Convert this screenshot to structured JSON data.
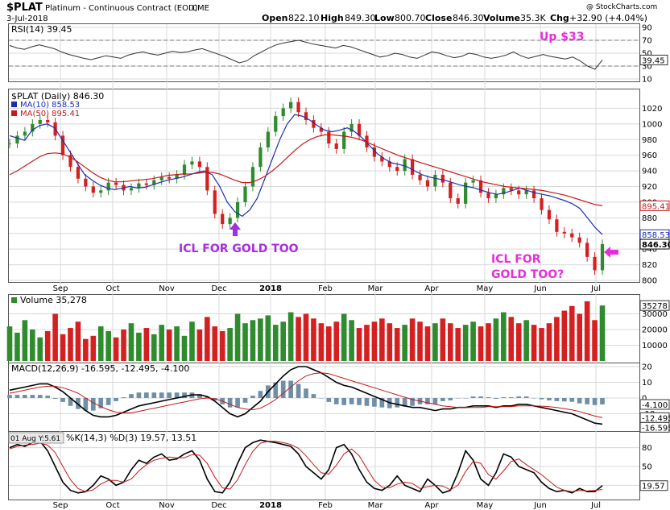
{
  "header": {
    "symbol": "$PLAT",
    "name": "Platinum - Continuous Contract (EOD)",
    "exchange": "CME",
    "date": "3-Jul-2018",
    "watermark": "@ StockCharts.com",
    "open_label": "Open",
    "open": "822.10",
    "high_label": "High",
    "high": "849.30",
    "low_label": "Low",
    "low": "800.70",
    "close_label": "Close",
    "close": "846.30",
    "volume_label": "Volume",
    "volume": "35.3K",
    "chg_label": "Chg",
    "chg": "+32.90 (+4.04%)"
  },
  "colors": {
    "up": "#2e8b2e",
    "down": "#d42020",
    "ma10": "#1c2fa8",
    "ma50": "#c41a1a",
    "annotation_pink": "#e62ed8",
    "annotation_purple": "#a52fdc",
    "grid": "#d8d8d8"
  },
  "annotations": {
    "up_text": "Up $33",
    "icl_gold_too": "ICL FOR GOLD TOO",
    "icl_for": "ICL FOR",
    "gold_too_q": "GOLD TOO?"
  },
  "chart_data": [
    {
      "type": "line",
      "panel": "rsi",
      "title": "RSI(14) 39.45",
      "ylim": [
        10,
        90
      ],
      "yticks": [
        10,
        30,
        50,
        70,
        90
      ],
      "last_value_label": "39.45",
      "values": [
        62,
        58,
        56,
        60,
        63,
        60,
        57,
        52,
        48,
        45,
        42,
        40,
        43,
        46,
        44,
        42,
        47,
        50,
        52,
        49,
        47,
        50,
        53,
        51,
        52,
        55,
        57,
        53,
        49,
        45,
        40,
        35,
        38,
        46,
        52,
        58,
        63,
        66,
        68,
        70,
        67,
        64,
        62,
        60,
        58,
        62,
        60,
        56,
        52,
        48,
        44,
        46,
        50,
        48,
        44,
        42,
        47,
        52,
        50,
        46,
        43,
        45,
        50,
        48,
        44,
        42,
        44,
        47,
        52,
        46,
        42,
        45,
        48,
        45,
        43,
        41,
        44,
        38,
        30,
        25,
        39.45
      ]
    },
    {
      "type": "line",
      "panel": "price",
      "title": "$PLAT (Daily) 846.30",
      "series": [
        {
          "name": "MA(10) 858.53",
          "label": "858.53",
          "values": [
            985,
            982,
            979,
            992,
            998,
            1000,
            995,
            980,
            965,
            950,
            935,
            928,
            922,
            918,
            916,
            918,
            920,
            918,
            919,
            922,
            925,
            928,
            930,
            932,
            935,
            938,
            940,
            935,
            920,
            900,
            888,
            882,
            890,
            905,
            930,
            955,
            980,
            1000,
            1012,
            1010,
            1005,
            998,
            992,
            990,
            992,
            995,
            990,
            982,
            972,
            962,
            955,
            950,
            948,
            945,
            940,
            935,
            932,
            930,
            928,
            925,
            922,
            920,
            918,
            915,
            912,
            910,
            912,
            915,
            918,
            915,
            912,
            910,
            908,
            905,
            902,
            898,
            892,
            880,
            868,
            858.53
          ]
        },
        {
          "name": "MA(50) 895.41",
          "label": "895.41",
          "values": [
            935,
            940,
            946,
            952,
            958,
            962,
            963,
            962,
            958,
            952,
            945,
            938,
            932,
            928,
            926,
            926,
            927,
            928,
            929,
            930,
            932,
            934,
            935,
            936,
            936,
            937,
            938,
            938,
            936,
            932,
            928,
            925,
            925,
            928,
            933,
            940,
            948,
            957,
            966,
            974,
            980,
            984,
            986,
            986,
            985,
            984,
            982,
            979,
            975,
            971,
            967,
            963,
            959,
            956,
            953,
            950,
            947,
            944,
            941,
            938,
            935,
            932,
            929,
            926,
            924,
            922,
            920,
            919,
            918,
            917,
            916,
            915,
            913,
            911,
            909,
            906,
            903,
            900,
            897,
            895.41
          ]
        }
      ],
      "ohlc_close": [
        975,
        985,
        990,
        1000,
        1005,
        1002,
        985,
        960,
        945,
        930,
        920,
        912,
        915,
        925,
        922,
        915,
        918,
        924,
        922,
        928,
        932,
        930,
        935,
        948,
        952,
        945,
        915,
        885,
        872,
        880,
        900,
        920,
        945,
        970,
        990,
        1010,
        1020,
        1028,
        1015,
        1005,
        995,
        990,
        975,
        968,
        990,
        1000,
        985,
        970,
        958,
        952,
        945,
        940,
        955,
        935,
        928,
        920,
        935,
        925,
        905,
        898,
        925,
        928,
        912,
        905,
        910,
        918,
        915,
        910,
        915,
        905,
        890,
        878,
        862,
        860,
        855,
        848,
        830,
        813,
        846.3
      ],
      "ylim": [
        800,
        1040
      ],
      "yticks": [
        800,
        820,
        840,
        860,
        880,
        900,
        920,
        940,
        960,
        980,
        1000,
        1020
      ],
      "last_value_label": "846.30",
      "xticks": [
        "Sep",
        "Oct",
        "Nov",
        "Dec",
        "2018",
        "Feb",
        "Mar",
        "Apr",
        "May",
        "Jun",
        "Jul"
      ]
    },
    {
      "type": "bar",
      "panel": "volume",
      "title": "Volume 35,278",
      "last_value_label": "35278",
      "ylim": [
        0,
        40000
      ],
      "yticks": [
        10000,
        20000,
        30000
      ],
      "values": [
        22000,
        18000,
        26000,
        20000,
        15000,
        19000,
        30000,
        17000,
        21000,
        25000,
        14000,
        16000,
        22000,
        19000,
        15000,
        20000,
        24000,
        18000,
        21000,
        17000,
        23000,
        20000,
        22000,
        16000,
        25000,
        20000,
        28000,
        22000,
        19000,
        21000,
        30000,
        24000,
        26000,
        27000,
        29000,
        23000,
        25000,
        31000,
        28000,
        30000,
        27000,
        24000,
        22000,
        25000,
        30000,
        26000,
        21000,
        23000,
        25000,
        27000,
        24000,
        21000,
        23000,
        27000,
        25000,
        22000,
        24000,
        27000,
        24000,
        21000,
        23000,
        25000,
        22000,
        24000,
        27000,
        31000,
        28000,
        24000,
        26000,
        23000,
        21000,
        24000,
        28000,
        32000,
        35000,
        30000,
        38000,
        26000,
        35278
      ]
    },
    {
      "type": "line",
      "panel": "macd",
      "title": "MACD(12,26,9) -16.595, -12.495, -4.100",
      "ylim": [
        -20,
        20
      ],
      "yticks": [
        -10,
        0,
        10,
        20
      ],
      "series": [
        {
          "name": "MACD",
          "label": "-16.595",
          "values": [
            5,
            6,
            7,
            8,
            9,
            9,
            7,
            4,
            0,
            -4,
            -8,
            -11,
            -12,
            -12,
            -11,
            -9,
            -7,
            -5,
            -4,
            -3,
            -2,
            -1,
            0,
            1,
            2,
            2,
            1,
            -2,
            -6,
            -10,
            -12,
            -10,
            -6,
            -2,
            4,
            9,
            14,
            18,
            20,
            20,
            18,
            16,
            13,
            10,
            8,
            7,
            5,
            3,
            1,
            -1,
            -3,
            -4,
            -5,
            -6,
            -6,
            -7,
            -8,
            -7,
            -7,
            -6,
            -6,
            -5,
            -5,
            -5,
            -6,
            -5,
            -5,
            -4,
            -4,
            -5,
            -6,
            -7,
            -8,
            -9,
            -10,
            -12,
            -14,
            -16,
            -16.595
          ]
        },
        {
          "name": "Signal",
          "label": "-12.495",
          "values": [
            3,
            4,
            5,
            6,
            7,
            7.5,
            7.5,
            6.5,
            5,
            3,
            0,
            -3,
            -5.5,
            -7.5,
            -9,
            -9.5,
            -9.5,
            -8.5,
            -7.5,
            -6.5,
            -5.5,
            -4.5,
            -3.5,
            -2.5,
            -1.5,
            -0.5,
            0,
            -0.5,
            -2,
            -4,
            -6,
            -7,
            -7.5,
            -6.5,
            -4,
            -1,
            3,
            7,
            11,
            14,
            15.5,
            16,
            15.5,
            14,
            12.5,
            11,
            9.5,
            8,
            6.5,
            5,
            3.5,
            2,
            0.5,
            -1,
            -2,
            -3,
            -4,
            -5,
            -5.5,
            -6,
            -6,
            -6,
            -6,
            -5.5,
            -5.5,
            -5.5,
            -5.5,
            -5,
            -5,
            -5,
            -5.2,
            -5.5,
            -6,
            -6.8,
            -7.6,
            -8.6,
            -10,
            -11.5,
            -12.495
          ]
        }
      ],
      "histogram_label": "-4.100",
      "histogram": [
        2,
        2,
        2,
        2,
        2,
        1.5,
        -0.5,
        -2.5,
        -5,
        -7,
        -8,
        -8,
        -6.5,
        -4.5,
        -2,
        0.5,
        2.5,
        3.5,
        3.5,
        3.5,
        3.5,
        3.5,
        3.5,
        3.5,
        3.5,
        2.5,
        1,
        -1.5,
        -4,
        -6,
        -6,
        -3,
        1.5,
        4.5,
        8,
        10,
        11,
        11,
        9,
        6,
        2.5,
        0,
        -2.5,
        -4,
        -4.5,
        -4,
        -4.5,
        -5,
        -5.5,
        -6,
        -6.5,
        -6,
        -5.5,
        -5,
        -4,
        -4,
        -4,
        -2,
        -1.5,
        0,
        0,
        1,
        1,
        0.5,
        -0.5,
        0.5,
        0.5,
        1,
        1,
        0,
        -0.8,
        -1.5,
        -2,
        -2.2,
        -2.4,
        -3.4,
        -4,
        -4.5,
        -4.1
      ]
    },
    {
      "type": "line",
      "panel": "stochastic",
      "title": "%K(14,3) %D(3) 19.57, 13.51",
      "date_tag": "01 Aug Y:5.61",
      "ylim": [
        0,
        100
      ],
      "yticks": [
        20,
        50,
        80
      ],
      "series": [
        {
          "name": "%K(14,3)",
          "label": "19.57",
          "values": [
            80,
            85,
            82,
            88,
            90,
            75,
            50,
            25,
            12,
            8,
            10,
            20,
            35,
            30,
            20,
            25,
            45,
            60,
            55,
            65,
            70,
            60,
            62,
            70,
            75,
            60,
            30,
            10,
            8,
            25,
            55,
            80,
            88,
            92,
            90,
            88,
            85,
            82,
            70,
            50,
            40,
            30,
            45,
            80,
            85,
            70,
            45,
            25,
            15,
            12,
            20,
            35,
            20,
            15,
            10,
            30,
            20,
            8,
            12,
            40,
            75,
            60,
            30,
            20,
            40,
            70,
            65,
            50,
            45,
            40,
            25,
            15,
            10,
            12,
            8,
            15,
            10,
            10,
            19.57
          ]
        },
        {
          "name": "%D(3)",
          "label": "13.51",
          "values": [
            78,
            82,
            84,
            85,
            87,
            84,
            72,
            50,
            29,
            15,
            10,
            13,
            22,
            28,
            28,
            25,
            30,
            43,
            53,
            60,
            63,
            65,
            64,
            64,
            69,
            68,
            55,
            33,
            16,
            14,
            29,
            53,
            74,
            87,
            90,
            90,
            88,
            85,
            79,
            67,
            53,
            40,
            38,
            52,
            70,
            78,
            67,
            47,
            28,
            17,
            16,
            22,
            25,
            23,
            15,
            18,
            20,
            19,
            13,
            20,
            42,
            58,
            55,
            37,
            30,
            43,
            58,
            62,
            53,
            45,
            37,
            27,
            17,
            12,
            10,
            12,
            11,
            12,
            13.51
          ]
        }
      ],
      "xticks": [
        "Sep",
        "Oct",
        "Nov",
        "Dec",
        "2018",
        "Feb",
        "Mar",
        "Apr",
        "May",
        "Jun",
        "Jul"
      ]
    }
  ]
}
